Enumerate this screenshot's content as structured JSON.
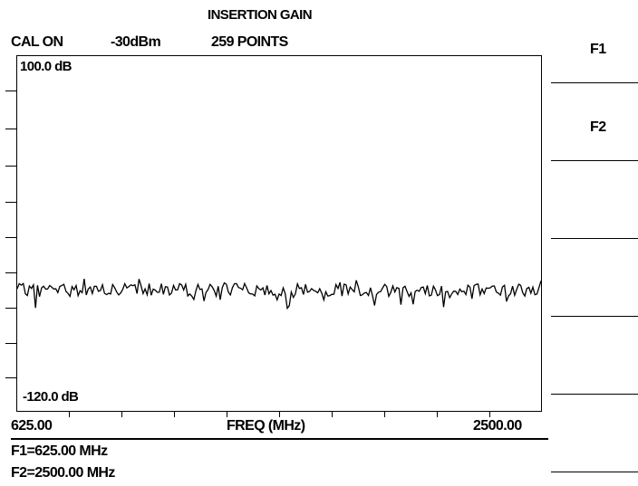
{
  "header": {
    "title": "INSERTION GAIN",
    "cal_status": "CAL ON",
    "source_power": "-30dBm",
    "points": "259 POINTS"
  },
  "plot": {
    "top_reference": "100.0 dB",
    "bottom_reference": "-120.0 dB",
    "x_start": "625.00",
    "x_label": "FREQ (MHz)",
    "x_end": "2500.00"
  },
  "markers": {
    "f1": "F1=625.00 MHz",
    "f2": "F2=2500.00 MHz"
  },
  "softkeys": [
    {
      "label": "F1"
    },
    {
      "label": "F2"
    },
    {
      "label": ""
    },
    {
      "label": ""
    },
    {
      "label": ""
    },
    {
      "label": ""
    }
  ],
  "chart_data": {
    "type": "line",
    "x_range": [
      625.0,
      2500.0
    ],
    "y_range": [
      -120.0,
      100.0
    ],
    "y_top_label": "100.0 dB",
    "y_bottom_label": "-120.0 dB",
    "xlabel": "FREQ (MHz)",
    "series": [
      {
        "points_count": 259,
        "approximate_level_db": -45.0,
        "variation_db": 8.0
      }
    ]
  }
}
